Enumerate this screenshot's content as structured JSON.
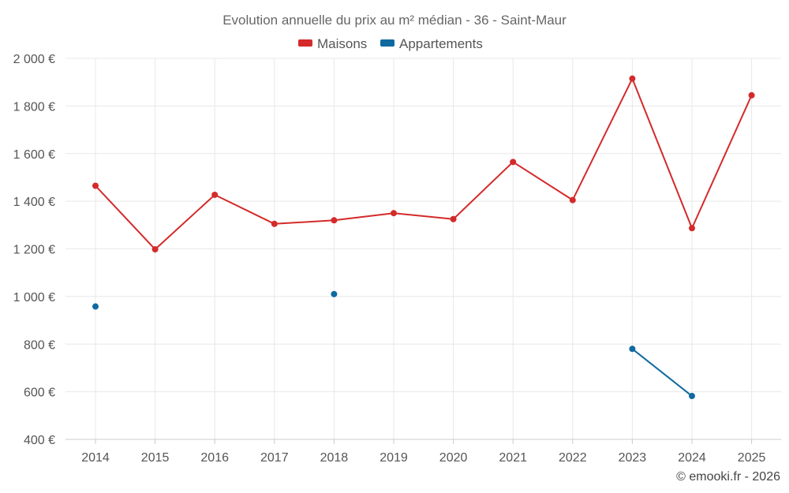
{
  "chart_data": {
    "type": "line",
    "title": "Evolution annuelle du prix au m² médian - 36 - Saint-Maur",
    "xlabel": "",
    "ylabel": "",
    "categories": [
      "2014",
      "2015",
      "2016",
      "2017",
      "2018",
      "2019",
      "2020",
      "2021",
      "2022",
      "2023",
      "2024",
      "2025"
    ],
    "ylim": [
      400,
      2000
    ],
    "yticks": [
      400,
      600,
      800,
      1000,
      1200,
      1400,
      1600,
      1800,
      2000
    ],
    "ytick_labels": [
      "400 €",
      "600 €",
      "800 €",
      "1 000 €",
      "1 200 €",
      "1 400 €",
      "1 600 €",
      "1 800 €",
      "2 000 €"
    ],
    "grid": true,
    "legend_position": "top-center",
    "series": [
      {
        "name": "Maisons",
        "color": "#d42a2a",
        "values": [
          1465,
          1198,
          1427,
          1305,
          1320,
          1350,
          1325,
          1565,
          1405,
          1915,
          1287,
          1845
        ]
      },
      {
        "name": "Appartements",
        "color": "#0f6aa0",
        "values": [
          958,
          null,
          null,
          null,
          1010,
          null,
          null,
          null,
          null,
          780,
          582,
          null
        ]
      }
    ]
  },
  "credit": "© emooki.fr - 2026"
}
